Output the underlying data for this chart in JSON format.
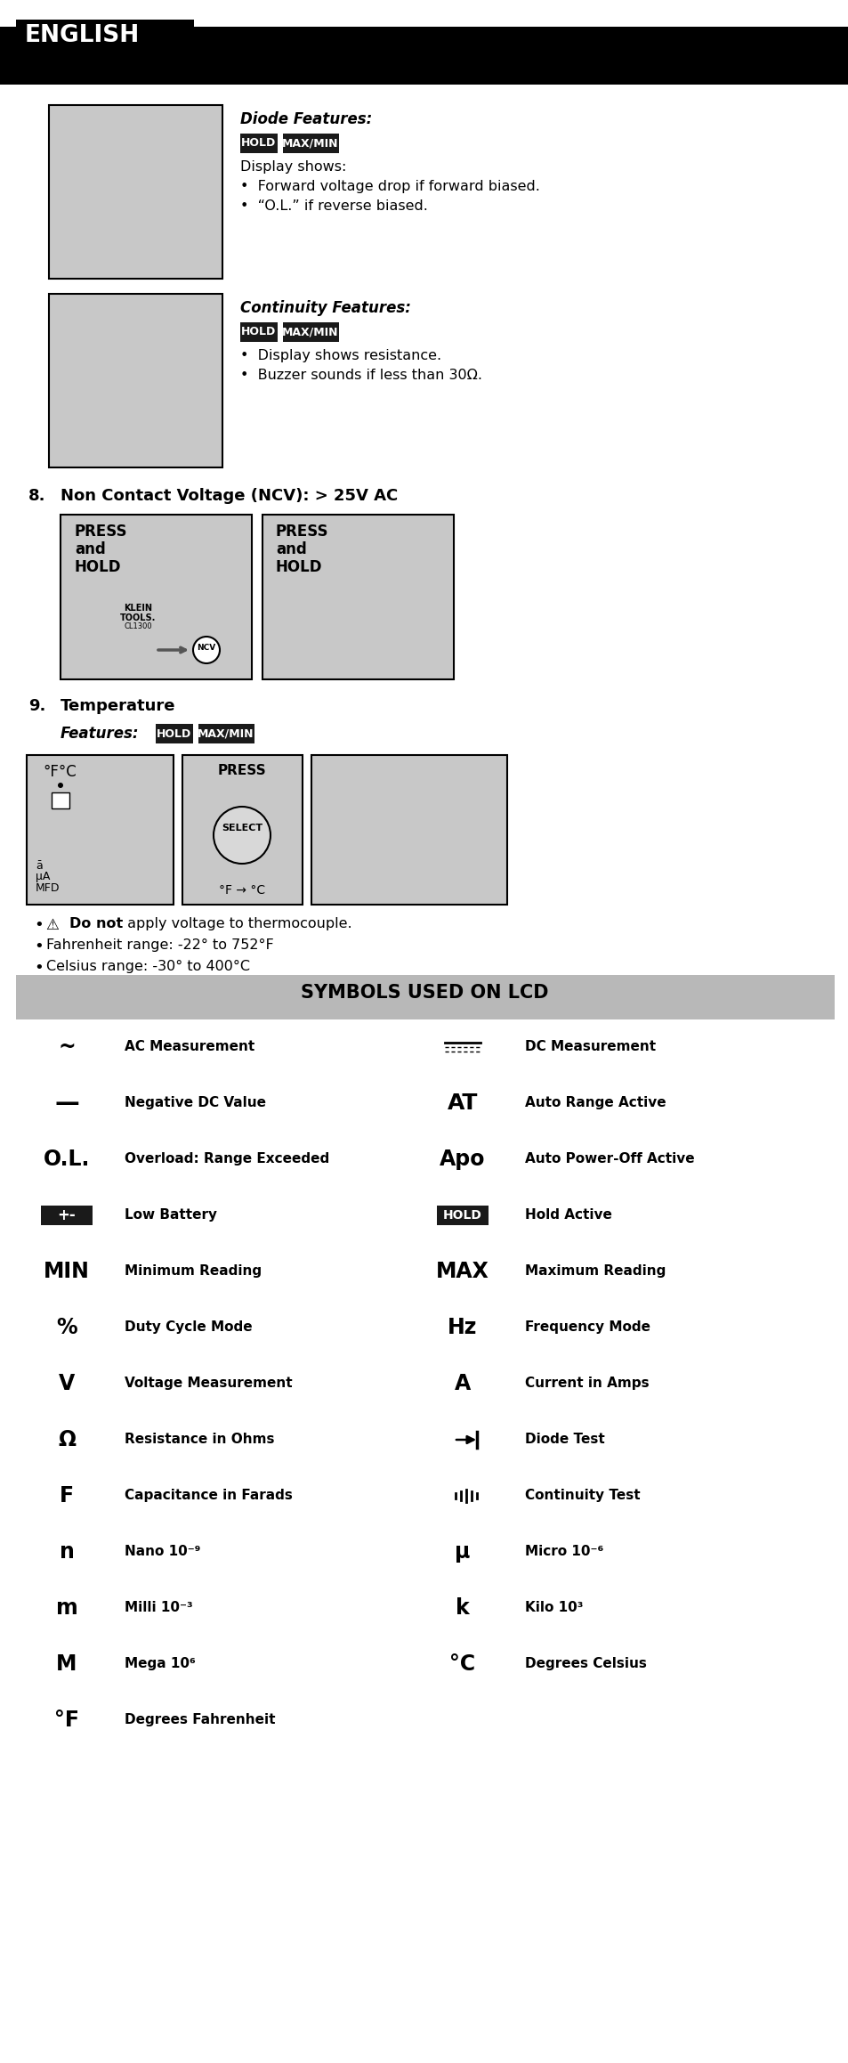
{
  "page_bg": "#ffffff",
  "header_bg": "#000000",
  "header_text": "ENGLISH",
  "hold_box_color": "#1a1a1a",
  "gray_image_bg": "#c8c8c8",
  "symbols_header_bg": "#b8b8b8",
  "symbols_header_text": "SYMBOLS USED ON LCD",
  "diode_title": "Diode Features:",
  "diode_display": "Display shows:",
  "diode_b1": "•  Forward voltage drop if forward biased.",
  "diode_b2": "•  “O.L.” if reverse biased.",
  "cont_title": "Continuity Features:",
  "cont_b1": "•  Display shows resistance.",
  "cont_b2": "•  Buzzer sounds if less than 30Ω.",
  "sec8_num": "8.",
  "sec8_title": "Non Contact Voltage (NCV): > 25V AC",
  "sec9_num": "9.",
  "sec9_title": "Temperature",
  "feat_label": "Features:",
  "temp_b1_warn": "⚠",
  "temp_b1_bold": "Do not",
  "temp_b1_rest": " apply voltage to thermocouple.",
  "temp_b2": "Fahrenheit range: -22° to 752°F",
  "temp_b3": "Celsius range: -30° to 400°C",
  "lcd_left": [
    {
      "sym": "~",
      "desc": "AC Measurement",
      "type": "text",
      "fs": 17
    },
    {
      "sym": "—",
      "desc": "Negative DC Value",
      "type": "text",
      "fs": 20
    },
    {
      "sym": "O.L.",
      "desc": "Overload: Range Exceeded",
      "type": "text",
      "fs": 17
    },
    {
      "sym": "+-",
      "desc": "Low Battery",
      "type": "bbox",
      "fs": 12
    },
    {
      "sym": "MIN",
      "desc": "Minimum Reading",
      "type": "text",
      "fs": 17
    },
    {
      "sym": "%",
      "desc": "Duty Cycle Mode",
      "type": "text",
      "fs": 17
    },
    {
      "sym": "V",
      "desc": "Voltage Measurement",
      "type": "text",
      "fs": 17
    },
    {
      "sym": "Ω",
      "desc": "Resistance in Ohms",
      "type": "text",
      "fs": 17
    },
    {
      "sym": "F",
      "desc": "Capacitance in Farads",
      "type": "text",
      "fs": 17
    },
    {
      "sym": "n",
      "desc": "Nano 10⁻⁹",
      "type": "text",
      "fs": 17
    },
    {
      "sym": "m",
      "desc": "Milli 10⁻³",
      "type": "text",
      "fs": 17
    },
    {
      "sym": "M",
      "desc": "Mega 10⁶",
      "type": "text",
      "fs": 17
    },
    {
      "sym": "°F",
      "desc": "Degrees Fahrenheit",
      "type": "text",
      "fs": 17
    }
  ],
  "lcd_right": [
    {
      "sym": "===",
      "desc": "DC Measurement",
      "type": "dclines",
      "fs": 11
    },
    {
      "sym": "AT",
      "desc": "Auto Range Active",
      "type": "text",
      "fs": 18
    },
    {
      "sym": "Apo",
      "desc": "Auto Power-Off Active",
      "type": "text",
      "fs": 17
    },
    {
      "sym": "HOLD",
      "desc": "Hold Active",
      "type": "bbox",
      "fs": 10
    },
    {
      "sym": "MAX",
      "desc": "Maximum Reading",
      "type": "text",
      "fs": 17
    },
    {
      "sym": "Hz",
      "desc": "Frequency Mode",
      "type": "text",
      "fs": 17
    },
    {
      "sym": "A",
      "desc": "Current in Amps",
      "type": "text",
      "fs": 17
    },
    {
      "sym": "diode",
      "desc": "Diode Test",
      "type": "diode",
      "fs": 11
    },
    {
      "sym": "sound",
      "desc": "Continuity Test",
      "type": "sound",
      "fs": 11
    },
    {
      "sym": "μ",
      "desc": "Micro 10⁻⁶",
      "type": "text",
      "fs": 17
    },
    {
      "sym": "k",
      "desc": "Kilo 10³",
      "type": "text",
      "fs": 17
    },
    {
      "sym": "°C",
      "desc": "Degrees Celsius",
      "type": "text",
      "fs": 17
    }
  ]
}
